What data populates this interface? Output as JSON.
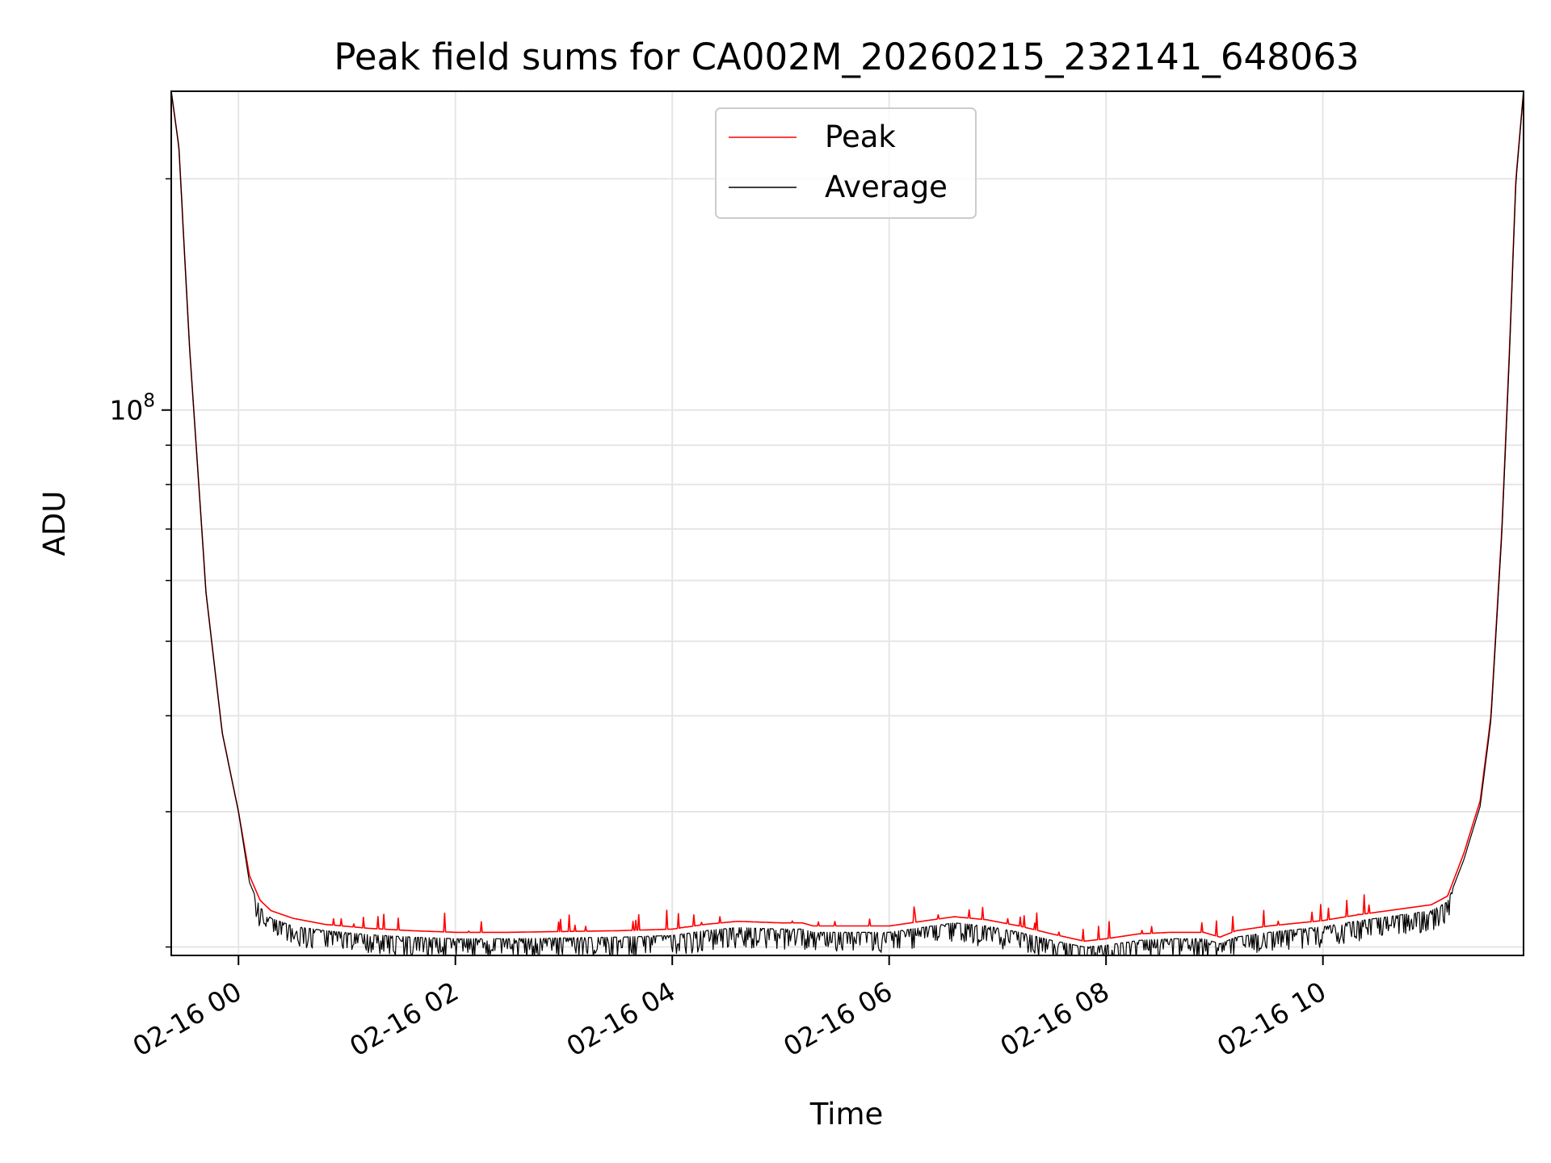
{
  "chart_data": {
    "type": "line",
    "title": "Peak field sums for CA002M_20260215_232141_648063",
    "xlabel": "Time",
    "ylabel": "ADU",
    "yscale": "log",
    "ylim": [
      19500000,
      260000000
    ],
    "xlim_hours": [
      -0.62,
      11.85
    ],
    "grid": true,
    "legend": {
      "position": "top-center",
      "entries": [
        "Peak",
        "Average"
      ]
    },
    "x_ticks": [
      {
        "hour": 0,
        "label": "02-16 00"
      },
      {
        "hour": 2,
        "label": "02-16 02"
      },
      {
        "hour": 4,
        "label": "02-16 04"
      },
      {
        "hour": 6,
        "label": "02-16 06"
      },
      {
        "hour": 8,
        "label": "02-16 08"
      },
      {
        "hour": 10,
        "label": "02-16 10"
      }
    ],
    "y_major_ticks": [
      {
        "value": 100000000,
        "base": "10",
        "exp": "8"
      }
    ],
    "y_minor_ticks": [
      20000000,
      30000000,
      40000000,
      50000000,
      60000000,
      70000000,
      80000000,
      90000000,
      200000000
    ],
    "series": [
      {
        "name": "Peak",
        "color": "#ff0000",
        "x_hours": [
          -0.62,
          -0.55,
          -0.45,
          -0.3,
          -0.15,
          0.0,
          0.1,
          0.2,
          0.3,
          0.5,
          0.8,
          1.2,
          1.6,
          2.0,
          2.5,
          3.0,
          3.5,
          4.0,
          4.3,
          4.6,
          5.0,
          5.2,
          5.3,
          5.6,
          6.0,
          6.3,
          6.6,
          6.9,
          7.2,
          7.5,
          7.8,
          8.0,
          8.3,
          8.6,
          8.9,
          9.05,
          9.2,
          9.5,
          10.0,
          10.3,
          10.6,
          11.0,
          11.15,
          11.3,
          11.45,
          11.55,
          11.65,
          11.72,
          11.78,
          11.85
        ],
        "values": [
          260000000,
          220000000,
          120000000,
          58000000,
          38000000,
          30000000,
          24800000,
          23000000,
          22300000,
          21800000,
          21400000,
          21150000,
          21000000,
          20900000,
          20900000,
          20950000,
          21000000,
          21100000,
          21400000,
          21600000,
          21500000,
          21500000,
          21300000,
          21300000,
          21300000,
          21600000,
          21900000,
          21700000,
          21300000,
          20800000,
          20350000,
          20500000,
          20800000,
          20900000,
          20900000,
          20600000,
          21000000,
          21300000,
          21650000,
          22000000,
          22300000,
          22700000,
          23300000,
          26500000,
          31000000,
          40000000,
          70000000,
          120000000,
          200000000,
          260000000
        ]
      },
      {
        "name": "Average",
        "color": "#000000",
        "x_hours": [
          -0.62,
          -0.55,
          -0.45,
          -0.3,
          -0.15,
          0.0,
          0.1,
          0.2,
          0.3,
          0.5,
          0.8,
          1.2,
          1.6,
          2.0,
          2.5,
          3.0,
          3.5,
          4.0,
          4.3,
          4.6,
          5.0,
          5.2,
          5.3,
          5.6,
          6.0,
          6.3,
          6.6,
          6.9,
          7.2,
          7.5,
          7.8,
          8.0,
          8.3,
          8.6,
          8.9,
          9.05,
          9.2,
          9.5,
          10.0,
          10.3,
          10.6,
          11.0,
          11.15,
          11.3,
          11.45,
          11.55,
          11.65,
          11.72,
          11.78,
          11.85
        ],
        "values": [
          260000000,
          220000000,
          120000000,
          58000000,
          38000000,
          30000000,
          24300000,
          22500000,
          21800000,
          21300000,
          21000000,
          20750000,
          20600000,
          20500000,
          20500000,
          20550000,
          20600000,
          20700000,
          21000000,
          21200000,
          21100000,
          21100000,
          20900000,
          20900000,
          20900000,
          21200000,
          21500000,
          21300000,
          20900000,
          20400000,
          20000000,
          20100000,
          20400000,
          20500000,
          20500000,
          20200000,
          20600000,
          20900000,
          21250000,
          21600000,
          21900000,
          22300000,
          22900000,
          26000000,
          30500000,
          39500000,
          69000000,
          118000000,
          198000000,
          260000000
        ]
      }
    ]
  }
}
